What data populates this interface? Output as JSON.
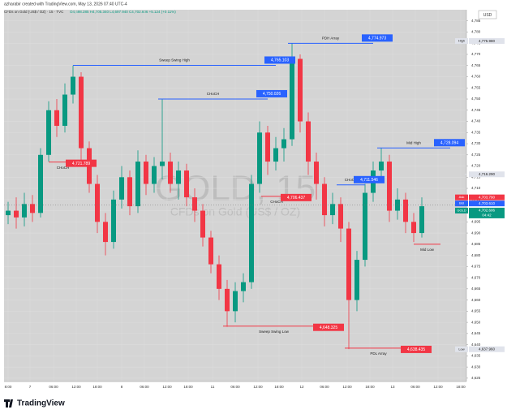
{
  "header": {
    "author_line": "azharabir created with TradingView.com, May 13, 2026 07:40 UTC-4",
    "symbol": "CFDs on Gold (US$ / OZ) · 15 · TVC",
    "ohlc": "O4,698.285 H4,705.340 L4,697.940 C4,702.606 +5.124 (+0.11%)"
  },
  "chart_data": {
    "type": "candlestick",
    "currency": "USD",
    "watermark": "GOLD, 15",
    "watermark_sub": "CFDs on Gold (US$ / OZ)",
    "up_color": "#089981",
    "down_color": "#f23645",
    "open": [
      4698,
      4700,
      4697,
      4703,
      4699,
      4725,
      4745,
      4738,
      4752,
      4760,
      4728,
      4712,
      4695,
      4686,
      4705,
      4715,
      4702,
      4722,
      4712,
      4720,
      4722,
      4712,
      4718,
      4706,
      4700,
      4688,
      4676,
      4665,
      4655,
      4664,
      4668,
      4712,
      4735,
      4722,
      4728,
      4732,
      4768,
      4740,
      4722,
      4712,
      4698,
      4703,
      4692,
      4660,
      4678,
      4708,
      4718,
      4722,
      4700,
      4705,
      4695,
      4690
    ],
    "high": [
      4704,
      4706,
      4708,
      4707,
      4728,
      4749,
      4750,
      4757,
      4765,
      4762,
      4731,
      4716,
      4699,
      4709,
      4720,
      4718,
      4727,
      4725,
      4724,
      4750,
      4726,
      4722,
      4721,
      4710,
      4703,
      4691,
      4680,
      4669,
      4668,
      4672,
      4716,
      4740,
      4738,
      4733,
      4737,
      4775,
      4770,
      4744,
      4726,
      4715,
      4708,
      4706,
      4695,
      4682,
      4712,
      4722,
      4728,
      4725,
      4710,
      4708,
      4699,
      4706
    ],
    "low": [
      4694,
      4692,
      4693,
      4695,
      4697,
      4722,
      4733,
      4735,
      4748,
      4722,
      4708,
      4690,
      4680,
      4683,
      4701,
      4698,
      4699,
      4707,
      4708,
      4714,
      4708,
      4705,
      4702,
      4695,
      4684,
      4672,
      4660,
      4648,
      4650,
      4659,
      4665,
      4708,
      4716,
      4718,
      4722,
      4729,
      4735,
      4716,
      4705,
      4693,
      4694,
      4686,
      4638,
      4655,
      4675,
      4704,
      4713,
      4695,
      4696,
      4690,
      4686,
      4688
    ],
    "close": [
      4700,
      4697,
      4703,
      4699,
      4725,
      4745,
      4738,
      4752,
      4760,
      4728,
      4712,
      4695,
      4686,
      4705,
      4715,
      4702,
      4722,
      4712,
      4720,
      4722,
      4712,
      4718,
      4706,
      4700,
      4688,
      4676,
      4665,
      4655,
      4664,
      4668,
      4712,
      4735,
      4722,
      4728,
      4732,
      4768,
      4740,
      4722,
      4712,
      4698,
      4703,
      4692,
      4660,
      4678,
      4708,
      4718,
      4722,
      4700,
      4705,
      4695,
      4690,
      4702
    ],
    "xlim": [
      0,
      57
    ],
    "xticks": [
      {
        "value": 0.5,
        "label": "8:00"
      },
      {
        "value": 3.2,
        "label": "7"
      },
      {
        "value": 6.1,
        "label": "06:00"
      },
      {
        "value": 8.9,
        "label": "12:00"
      },
      {
        "value": 11.5,
        "label": "18:00"
      },
      {
        "value": 14.5,
        "label": "8"
      },
      {
        "value": 17.3,
        "label": "06:00"
      },
      {
        "value": 20.1,
        "label": "12:00"
      },
      {
        "value": 22.7,
        "label": "18:00"
      },
      {
        "value": 25.7,
        "label": "11"
      },
      {
        "value": 28.5,
        "label": "06:00"
      },
      {
        "value": 31.3,
        "label": "12:00"
      },
      {
        "value": 33.9,
        "label": "18:00"
      },
      {
        "value": 36.7,
        "label": "12"
      },
      {
        "value": 39.5,
        "label": "06:00"
      },
      {
        "value": 42.3,
        "label": "12:00"
      },
      {
        "value": 45.1,
        "label": "18:00"
      },
      {
        "value": 47.9,
        "label": "13"
      },
      {
        "value": 50.7,
        "label": "06:00"
      },
      {
        "value": 53.5,
        "label": "12:00"
      },
      {
        "value": 56.3,
        "label": "18:00"
      }
    ],
    "ylim": [
      4623.5,
      4790
    ],
    "yticks": [
      {
        "value": 4625,
        "label": "4,625"
      },
      {
        "value": 4630,
        "label": "4,630"
      },
      {
        "value": 4635,
        "label": "4,635"
      },
      {
        "value": 4640,
        "label": "4,640"
      },
      {
        "value": 4645,
        "label": "4,645"
      },
      {
        "value": 4650,
        "label": "4,650"
      },
      {
        "value": 4655,
        "label": "4,655"
      },
      {
        "value": 4660,
        "label": "4,660"
      },
      {
        "value": 4665,
        "label": "4,665"
      },
      {
        "value": 4670,
        "label": "4,670"
      },
      {
        "value": 4675,
        "label": "4,675"
      },
      {
        "value": 4680,
        "label": "4,680"
      },
      {
        "value": 4685,
        "label": "4,685"
      },
      {
        "value": 4690,
        "label": "4,690"
      },
      {
        "value": 4695,
        "label": "4,695"
      },
      {
        "value": 4700,
        "label": "4,700"
      },
      {
        "value": 4705,
        "label": "4,705"
      },
      {
        "value": 4710,
        "label": "4,710"
      },
      {
        "value": 4715,
        "label": "4,715"
      },
      {
        "value": 4720,
        "label": "4,720"
      },
      {
        "value": 4725,
        "label": "4,725"
      },
      {
        "value": 4730,
        "label": "4,730"
      },
      {
        "value": 4735,
        "label": "4,735"
      },
      {
        "value": 4740,
        "label": "4,740"
      },
      {
        "value": 4745,
        "label": "4,745"
      },
      {
        "value": 4750,
        "label": "4,750"
      },
      {
        "value": 4755,
        "label": "4,755"
      },
      {
        "value": 4760,
        "label": "4,760"
      },
      {
        "value": 4765,
        "label": "4,765"
      },
      {
        "value": 4770,
        "label": "4,770"
      },
      {
        "value": 4775,
        "label": "4,775"
      },
      {
        "value": 4780,
        "label": "4,780"
      },
      {
        "value": 4785,
        "label": "4,785"
      }
    ],
    "grid": true,
    "levels": [
      {
        "name": "Sweep Swing High",
        "price": 4765.103,
        "price_label": "4,765.103",
        "from": 8.5,
        "to": 33.5,
        "color": "#2962ff",
        "label_position": "above"
      },
      {
        "name": "PDH Array",
        "price": 4774.973,
        "price_label": "4,774.973",
        "from": 35,
        "to": 45.5,
        "color": "#2962ff",
        "label_position": "above"
      },
      {
        "name": "CHoCH",
        "price": 4750.026,
        "price_label": "4,750.026",
        "from": 19,
        "to": 32.5,
        "color": "#2962ff",
        "label_position": "above"
      },
      {
        "name": "Mid High",
        "price": 4728.094,
        "price_label": "4,728.094",
        "from": 46,
        "to": 55,
        "color": "#2962ff",
        "label_position": "above"
      },
      {
        "name": "CHoCH",
        "price": 4711.546,
        "price_label": "4,711.546",
        "from": 41,
        "to": 44.5,
        "color": "#2962ff",
        "label_position": "above"
      },
      {
        "name": "CHoCH",
        "price": 4721.789,
        "price_label": "4,721.789",
        "from": 5.5,
        "to": 9,
        "color": "#f23645",
        "label_position": "below"
      },
      {
        "name": "CHoCH",
        "price": 4706.437,
        "price_label": "4,706.437",
        "from": 31.7,
        "to": 35.5,
        "color": "#f23645",
        "label_position": "below"
      },
      {
        "name": "Sweep Swing Low",
        "price": 4648.325,
        "price_label": "4,648.325",
        "from": 27,
        "to": 39.5,
        "color": "#f23645",
        "label_position": "below"
      },
      {
        "name": "PDL Array",
        "price": 4638.435,
        "price_label": "4,638.435",
        "from": 42,
        "to": 50.3,
        "color": "#f23645",
        "label_position": "below"
      },
      {
        "name": "Mid Low",
        "price": 4685,
        "from": 50.5,
        "to": 53.8,
        "color": "#f23645",
        "label_position": "below"
      }
    ],
    "price_labels": [
      {
        "name": "High",
        "value": 4775.98,
        "label": "4,775.980",
        "color": "#e0e3eb"
      },
      {
        "value": 4716.29,
        "label": "4,716.290",
        "color": "#e0e3eb"
      },
      {
        "name": "Ask",
        "value": 4703.79,
        "label": "4,703.790",
        "color": "#f23645"
      },
      {
        "name": "Bid",
        "value": 4703.61,
        "label": "4,703.610",
        "color": "#2962ff"
      },
      {
        "name": "GOLD",
        "value": 4702.606,
        "label": "4,702.606",
        "color": "#089981",
        "countdown": "04:42"
      },
      {
        "name": "Low",
        "value": 4637.96,
        "label": "4,637.960",
        "color": "#e0e3eb"
      }
    ]
  },
  "footer": {
    "brand": "TradingView"
  }
}
